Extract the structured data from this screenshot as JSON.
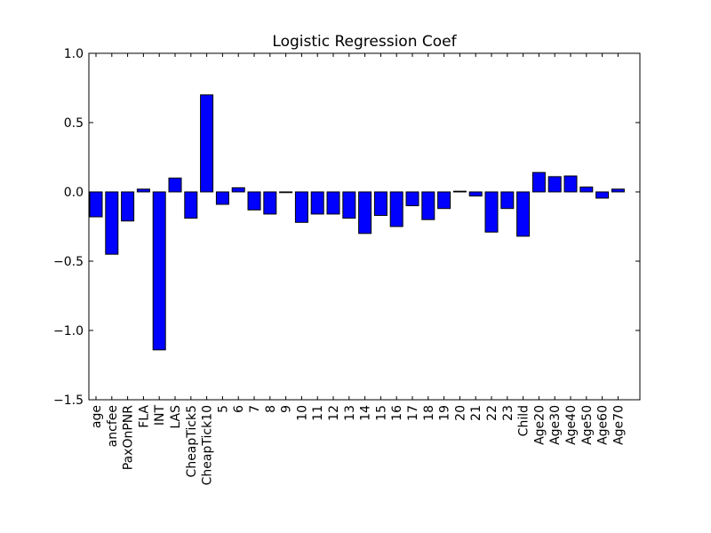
{
  "chart_data": {
    "type": "bar",
    "title": "Logistic Regression Coef",
    "xlabel": "",
    "ylabel": "",
    "ylim": [
      -1.5,
      1.0
    ],
    "yticks": [
      1.0,
      0.5,
      0.0,
      -0.5,
      -1.0,
      -1.5
    ],
    "ytick_labels": [
      "1.0",
      "0.5",
      "0.0",
      "−0.5",
      "−1.0",
      "−1.5"
    ],
    "bar_color": "#0000ff",
    "grid": false,
    "categories": [
      "age",
      "ancfee",
      "PaxOnPNR",
      "FLA",
      "INT",
      "LAS",
      "CheapTick5",
      "CheapTick10",
      "5",
      "6",
      "7",
      "8",
      "9",
      "10",
      "11",
      "12",
      "13",
      "14",
      "15",
      "16",
      "17",
      "18",
      "19",
      "20",
      "21",
      "22",
      "23",
      "Child",
      "Age20",
      "Age30",
      "Age40",
      "Age50",
      "Age60",
      "Age70"
    ],
    "values": [
      -0.18,
      -0.45,
      -0.21,
      0.02,
      -1.14,
      0.1,
      -0.19,
      0.7,
      -0.09,
      0.03,
      -0.13,
      -0.16,
      -0.005,
      -0.22,
      -0.16,
      -0.16,
      -0.19,
      -0.3,
      -0.17,
      -0.25,
      -0.1,
      -0.2,
      -0.12,
      0.005,
      -0.03,
      -0.29,
      -0.12,
      -0.32,
      0.14,
      0.11,
      0.115,
      0.035,
      -0.045,
      0.02
    ]
  }
}
